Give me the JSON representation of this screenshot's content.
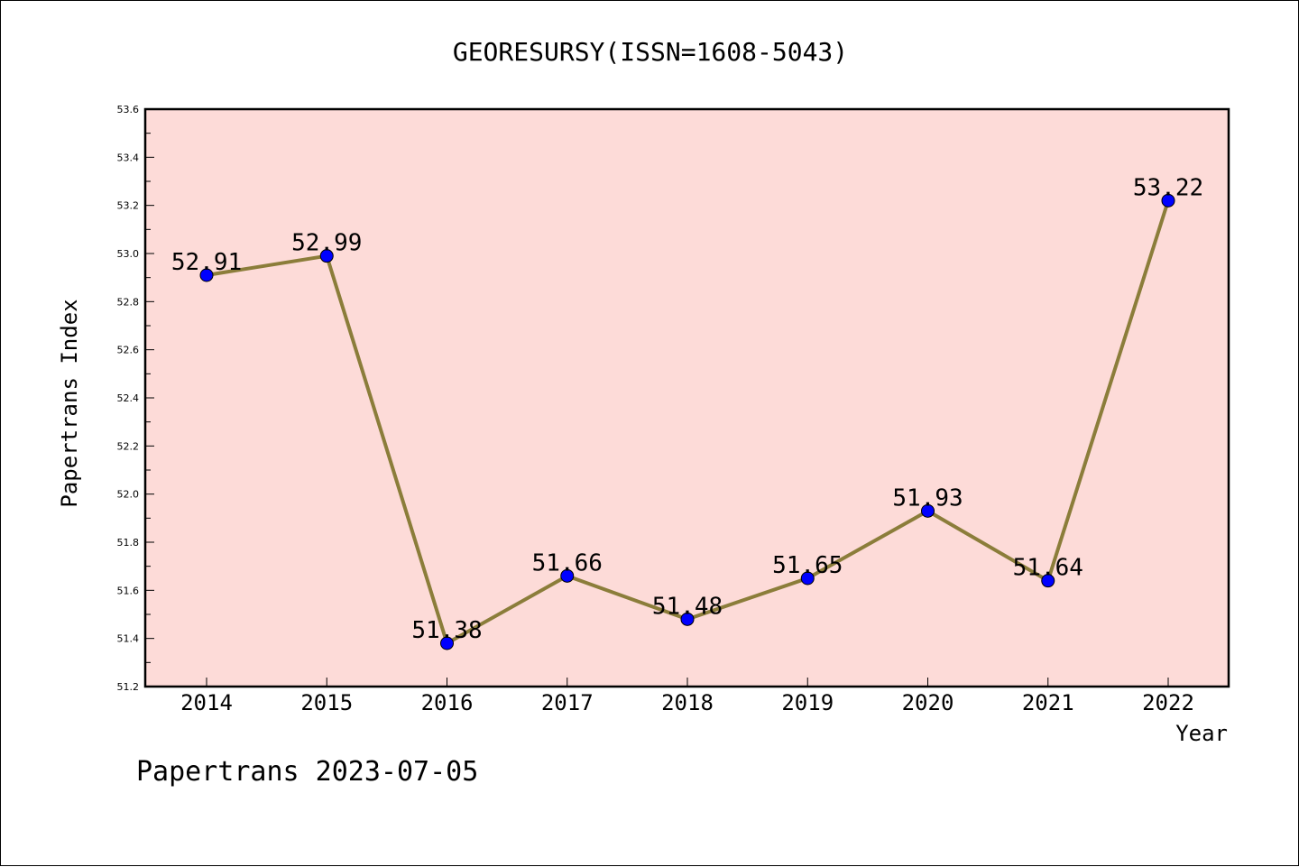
{
  "chart_data": {
    "type": "line",
    "title": "GEORESURSY(ISSN=1608-5043)",
    "xlabel": "Year",
    "ylabel": "Papertrans Index",
    "categories": [
      "2014",
      "2015",
      "2016",
      "2017",
      "2018",
      "2019",
      "2020",
      "2021",
      "2022"
    ],
    "series": [
      {
        "values": [
          52.91,
          52.99,
          51.38,
          51.66,
          51.48,
          51.65,
          51.93,
          51.64,
          53.22
        ],
        "labels": [
          "52.91",
          "52.99",
          "51.38",
          "51.66",
          "51.48",
          "51.65",
          "51.93",
          "51.64",
          "53.22"
        ]
      }
    ],
    "ylim": [
      51.2,
      53.6
    ],
    "yticks": [
      "51.2",
      "51.4",
      "51.6",
      "51.8",
      "52.0",
      "52.2",
      "52.4",
      "52.6",
      "52.8",
      "53.0",
      "53.2",
      "53.4",
      "53.6"
    ],
    "grid": false,
    "colors": {
      "plot_background": "#fddbd8",
      "line": "#8b7d3a",
      "marker": "#0000ff"
    }
  },
  "footer": {
    "text": "Papertrans 2023-07-05"
  }
}
